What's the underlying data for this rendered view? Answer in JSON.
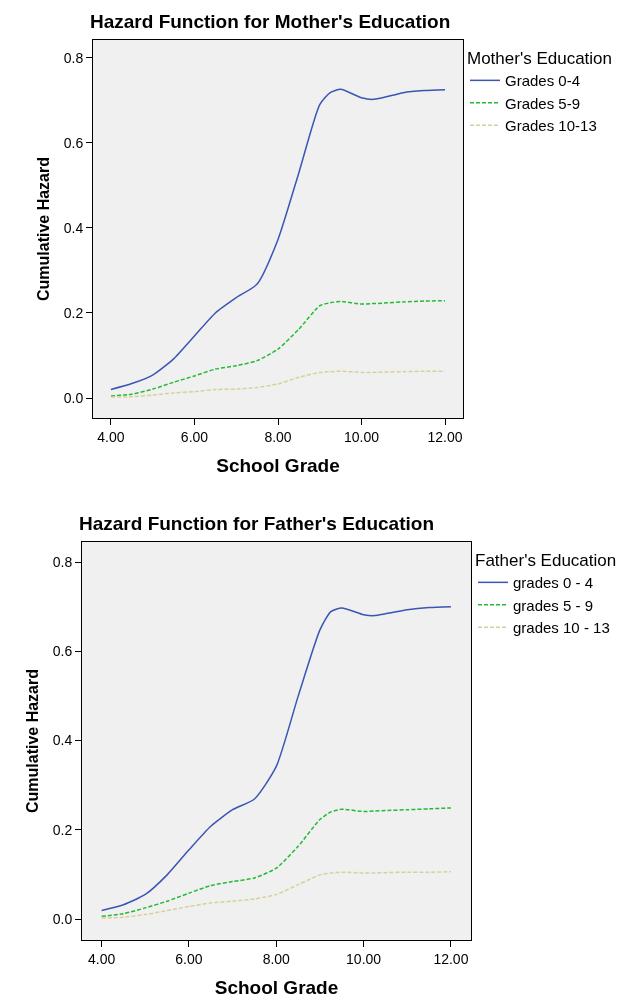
{
  "chart_data": [
    {
      "type": "line",
      "title": "Hazard Function for Mother's Education",
      "xlabel": "School Grade",
      "ylabel": "Cumulative Hazard",
      "legend_title": "Mother's Education",
      "legend": "top right",
      "grid": false,
      "marker": "none",
      "xlim": [
        3.57,
        12.43
      ],
      "ylim": [
        -0.047,
        0.842
      ],
      "xticks": [
        {
          "value": 4,
          "label": "4.00"
        },
        {
          "value": 6,
          "label": "6.00"
        },
        {
          "value": 8,
          "label": "8.00"
        },
        {
          "value": 10,
          "label": "10.00"
        },
        {
          "value": 12,
          "label": "12.00"
        }
      ],
      "yticks": [
        {
          "value": 0,
          "label": "0.0"
        },
        0.2,
        0.4,
        0.6,
        0.8
      ],
      "x": [
        4,
        4.5,
        5,
        5.5,
        6,
        6.5,
        7,
        7.5,
        8,
        8.5,
        9,
        9.25,
        9.5,
        10,
        10.25,
        10.5,
        11,
        11.5,
        12
      ],
      "series": [
        {
          "name": "Grades 0-4",
          "color": "#3a55b4",
          "line_style": "solid",
          "values": [
            0.02,
            0.034,
            0.054,
            0.092,
            0.146,
            0.2,
            0.236,
            0.268,
            0.373,
            0.53,
            0.69,
            0.718,
            0.726,
            0.706,
            0.702,
            0.706,
            0.718,
            0.723,
            0.725
          ]
        },
        {
          "name": "Grades 5-9",
          "color": "#22bb33",
          "line_style": "dashed",
          "values": [
            0.005,
            0.009,
            0.021,
            0.037,
            0.052,
            0.068,
            0.076,
            0.088,
            0.115,
            0.162,
            0.217,
            0.224,
            0.227,
            0.221,
            0.222,
            0.223,
            0.226,
            0.228,
            0.229
          ]
        },
        {
          "name": "Grades 10-13",
          "color": "#d8d09a",
          "line_style": "dashed",
          "values": [
            0.002,
            0.003,
            0.007,
            0.012,
            0.015,
            0.02,
            0.021,
            0.025,
            0.033,
            0.049,
            0.06,
            0.062,
            0.063,
            0.06,
            0.06,
            0.061,
            0.062,
            0.063,
            0.063
          ]
        }
      ]
    },
    {
      "type": "line",
      "title": "Hazard Function for Father's Education",
      "xlabel": "School Grade",
      "ylabel": "Cumulative Hazard",
      "legend_title": "Father's Education",
      "legend": "top right",
      "grid": false,
      "marker": "none",
      "xlim": [
        3.55,
        12.46
      ],
      "ylim": [
        -0.047,
        0.845
      ],
      "xticks": [
        {
          "value": 4,
          "label": "4.00"
        },
        {
          "value": 6,
          "label": "6.00"
        },
        {
          "value": 8,
          "label": "8.00"
        },
        {
          "value": 10,
          "label": "10.00"
        },
        {
          "value": 12,
          "label": "12.00"
        }
      ],
      "yticks": [
        {
          "value": 0,
          "label": "0.0"
        },
        0.2,
        0.4,
        0.6,
        0.8
      ],
      "x": [
        4,
        4.5,
        5,
        5.5,
        6,
        6.5,
        7,
        7.5,
        8,
        8.5,
        9,
        9.25,
        9.5,
        10,
        10.25,
        10.5,
        11,
        11.5,
        12
      ],
      "series": [
        {
          "name": "grades 0 - 4",
          "color": "#3a55b4",
          "line_style": "solid",
          "values": [
            0.019,
            0.032,
            0.055,
            0.099,
            0.155,
            0.208,
            0.245,
            0.269,
            0.342,
            0.499,
            0.648,
            0.689,
            0.697,
            0.682,
            0.68,
            0.684,
            0.693,
            0.698,
            0.7
          ]
        },
        {
          "name": "grades 5 - 9",
          "color": "#22bb33",
          "line_style": "dashed",
          "values": [
            0.006,
            0.012,
            0.025,
            0.04,
            0.058,
            0.075,
            0.084,
            0.092,
            0.114,
            0.163,
            0.223,
            0.24,
            0.246,
            0.241,
            0.242,
            0.243,
            0.245,
            0.247,
            0.249
          ]
        },
        {
          "name": "grades 10 - 13",
          "color": "#d8d09a",
          "line_style": "dashed",
          "values": [
            0.002,
            0.004,
            0.01,
            0.019,
            0.028,
            0.036,
            0.04,
            0.045,
            0.055,
            0.077,
            0.099,
            0.103,
            0.105,
            0.103,
            0.103,
            0.104,
            0.105,
            0.105,
            0.106
          ]
        }
      ]
    }
  ]
}
